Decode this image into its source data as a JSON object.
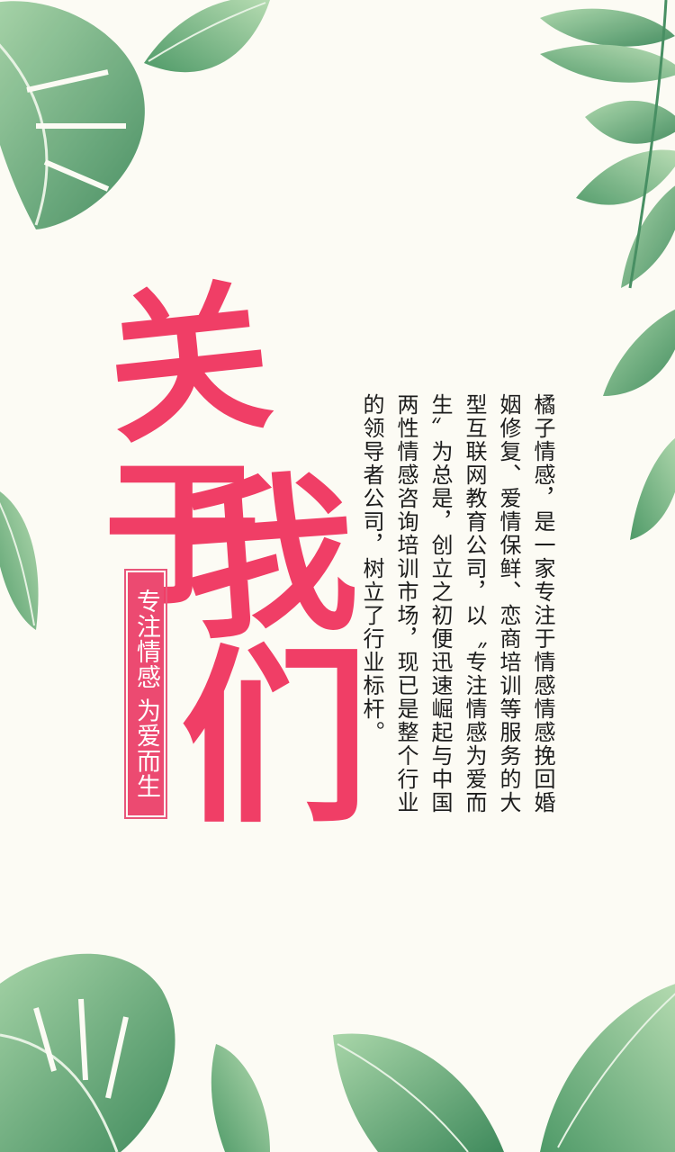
{
  "title": [
    "关",
    "于",
    "我",
    "们"
  ],
  "slogan": "专注情感 为爱而生",
  "body": "橘子情感，是一家专注于情感情感挽回婚姻修复、爱情保鲜、恋商培训等服务的大型互联网教育公司，以〝专注情感为爱而生〞为总是，创立之初便迅速崛起与中国两性情感咨询培训市场，现已是整个行业的领导者公司，树立了行业标杆。",
  "colors": {
    "accent": "#f03e66",
    "leaf_dark": "#3f8a5c",
    "leaf_light": "#9fd0a4",
    "background": "#fcfbf4"
  }
}
